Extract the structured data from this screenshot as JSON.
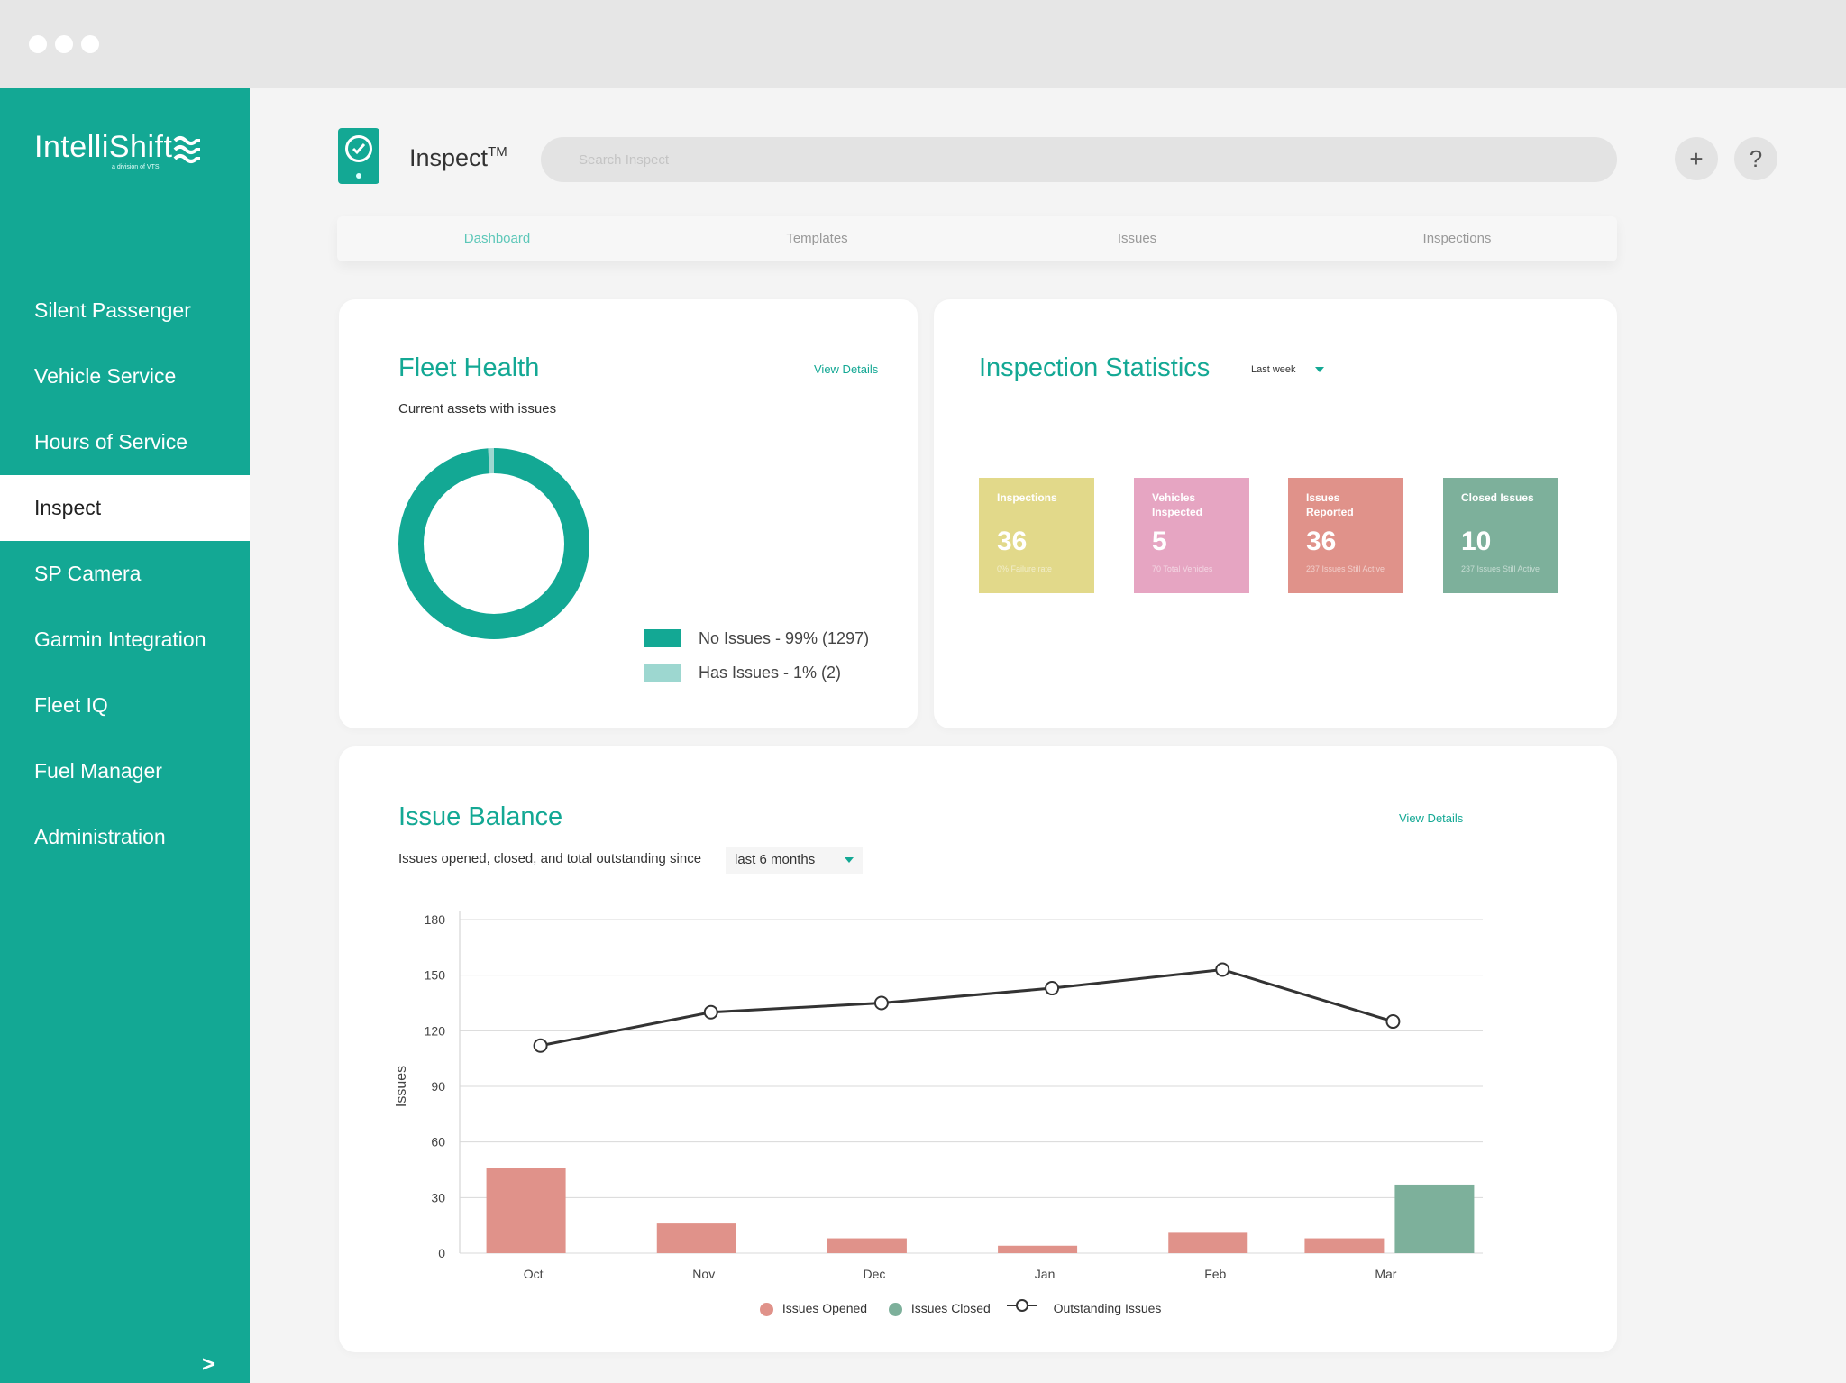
{
  "sidebar": {
    "brand": "IntelliShift",
    "brand_sub": "a division of VTS",
    "items": [
      {
        "label": "Silent Passenger"
      },
      {
        "label": "Vehicle Service"
      },
      {
        "label": "Hours of Service"
      },
      {
        "label": "Inspect"
      },
      {
        "label": "SP Camera"
      },
      {
        "label": "Garmin Integration"
      },
      {
        "label": "Fleet IQ"
      },
      {
        "label": "Fuel Manager"
      },
      {
        "label": "Administration"
      }
    ],
    "active_item": "Inspect",
    "collapse_label": ">"
  },
  "header": {
    "app_name": "Inspect",
    "app_name_mark": "TM",
    "search_placeholder": "Search Inspect",
    "add_label": "+",
    "help_label": "?"
  },
  "tabs": [
    {
      "label": "Dashboard",
      "active": true
    },
    {
      "label": "Templates",
      "active": false
    },
    {
      "label": "Issues",
      "active": false
    },
    {
      "label": "Inspections",
      "active": false
    }
  ],
  "fleet_health": {
    "title": "Fleet Health",
    "view_details": "View Details",
    "subtitle": "Current assets with issues",
    "legend": [
      {
        "label": "No Issues - 99% (1297)",
        "color": "#13a894",
        "fraction": 0.99
      },
      {
        "label": "Has Issues - 1% (2)",
        "color": "#9dd7d0",
        "fraction": 0.01
      }
    ]
  },
  "inspection_statistics": {
    "title": "Inspection Statistics",
    "range": "Last week",
    "stats": [
      {
        "label": "Inspections",
        "value": "36",
        "note": "0% Failure rate",
        "color": "#e2d98a"
      },
      {
        "label": "Vehicles Inspected",
        "value": "5",
        "note": "70 Total Vehicles",
        "color": "#e6a5c2"
      },
      {
        "label": "Issues Reported",
        "value": "36",
        "note": "237 Issues Still Active",
        "color": "#e0928a"
      },
      {
        "label": "Closed Issues",
        "value": "10",
        "note": "237 Issues Still Active",
        "color": "#7db09b"
      }
    ]
  },
  "issue_balance": {
    "title": "Issue Balance",
    "view_details": "View Details",
    "subtitle": "Issues opened, closed, and total outstanding since",
    "period": "last 6 months",
    "legend": {
      "opened": "Issues Opened",
      "closed": "Issues Closed",
      "outstanding": "Outstanding Issues"
    },
    "colors": {
      "opened": "#e0928a",
      "closed": "#7db09b",
      "line": "#333333"
    }
  },
  "chart_data": {
    "type": "bar",
    "title": "Issue Balance",
    "xlabel": "",
    "ylabel": "Issues",
    "ylim": [
      0,
      180
    ],
    "yticks": [
      0,
      30,
      60,
      90,
      120,
      150,
      180
    ],
    "categories": [
      "Oct",
      "Nov",
      "Dec",
      "Jan",
      "Feb",
      "Mar"
    ],
    "series": [
      {
        "name": "Issues Opened",
        "type": "bar",
        "values": [
          46,
          16,
          8,
          4,
          11,
          8
        ]
      },
      {
        "name": "Issues Closed",
        "type": "bar",
        "values": [
          0,
          0,
          0,
          0,
          0,
          37
        ]
      },
      {
        "name": "Outstanding Issues",
        "type": "line",
        "values": [
          112,
          130,
          135,
          143,
          153,
          125
        ]
      }
    ],
    "grid": true,
    "legend_position": "bottom"
  }
}
